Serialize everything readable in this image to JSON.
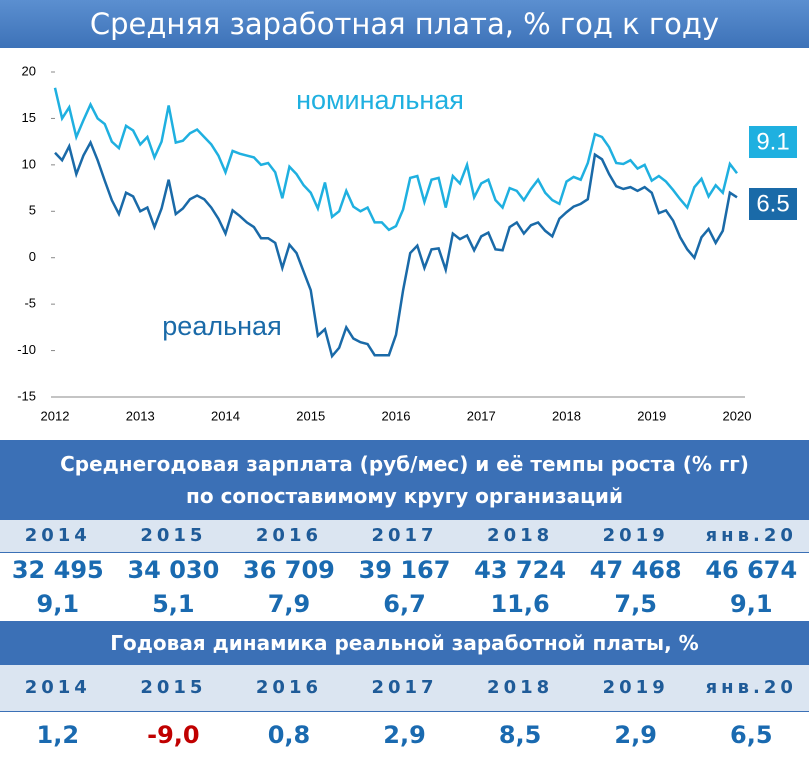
{
  "header": {
    "title": "Средняя заработная плата, % год к году"
  },
  "chart_data": {
    "type": "line",
    "categories": [
      "2012",
      null,
      null,
      null,
      null,
      null,
      null,
      null,
      null,
      null,
      null,
      null,
      "2013",
      null,
      null,
      null,
      null,
      null,
      null,
      null,
      null,
      null,
      null,
      null,
      "2014",
      null,
      null,
      null,
      null,
      null,
      null,
      null,
      null,
      null,
      null,
      null,
      "2015",
      null,
      null,
      null,
      null,
      null,
      null,
      null,
      null,
      null,
      null,
      null,
      "2016",
      null,
      null,
      null,
      null,
      null,
      null,
      null,
      null,
      null,
      null,
      null,
      "2017",
      null,
      null,
      null,
      null,
      null,
      null,
      null,
      null,
      null,
      null,
      null,
      "2018",
      null,
      null,
      null,
      null,
      null,
      null,
      null,
      null,
      null,
      null,
      null,
      "2019",
      null,
      null,
      null,
      null,
      null,
      null,
      null,
      null,
      null,
      null,
      null,
      "2020"
    ],
    "series": [
      {
        "name": "номинальная",
        "color": "#1fb0e0",
        "values": [
          18.3,
          15,
          16.2,
          13,
          14.8,
          16.5,
          15,
          14.4,
          12.5,
          11.8,
          14.2,
          13.7,
          12.2,
          13,
          10.8,
          12.5,
          16.4,
          12.4,
          12.6,
          13.4,
          13.8,
          13,
          12.2,
          11,
          9.2,
          11.5,
          11.2,
          11,
          10.8,
          10,
          10.2,
          9.2,
          6.4,
          9.8,
          9,
          7.8,
          7,
          5.3,
          8.1,
          4.4,
          5,
          7.2,
          5.5,
          5,
          5.4,
          3.8,
          3.8,
          3,
          3.4,
          5.2,
          8.6,
          8.8,
          6,
          8.4,
          8.6,
          5.4,
          8.8,
          8,
          10,
          6.5,
          8,
          8.4,
          6.2,
          5.4,
          7.5,
          7.2,
          6.2,
          7.4,
          8.4,
          7,
          6.2,
          5.8,
          8.2,
          8.7,
          8.4,
          10.2,
          13.3,
          13,
          11.9,
          10.2,
          10.1,
          10.5,
          9.6,
          10,
          8.3,
          8.8,
          8.2,
          7.3,
          6.3,
          5.4,
          7.6,
          8.5,
          6.6,
          7.8,
          7,
          10.1,
          9.1
        ]
      },
      {
        "name": "реальная",
        "color": "#1a6aa8",
        "values": [
          11.3,
          10.5,
          12,
          9,
          11,
          12.4,
          10.5,
          8.3,
          6.2,
          4.7,
          7,
          6.6,
          5,
          5.4,
          3.3,
          5.3,
          8.4,
          4.7,
          5.3,
          6.3,
          6.7,
          6.3,
          5.4,
          4.2,
          2.6,
          5.1,
          4.5,
          3.8,
          3.3,
          2.1,
          2.1,
          1.6,
          -1.1,
          1.4,
          0.5,
          -1.5,
          -3.5,
          -8.4,
          -7.7,
          -10.6,
          -9.7,
          -7.5,
          -8.7,
          -9.1,
          -9.3,
          -10.5,
          -10.5,
          -10.5,
          -8.3,
          -3.5,
          0.5,
          1.3,
          -1.1,
          0.9,
          1,
          -1.3,
          2.6,
          2,
          2.4,
          0.8,
          2.3,
          2.7,
          0.9,
          0.8,
          3.3,
          3.8,
          2.6,
          3.5,
          3.8,
          2.9,
          2.3,
          4.2,
          4.9,
          5.5,
          5.8,
          6.3,
          11.1,
          10.6,
          9,
          7.7,
          7.4,
          7.6,
          7.2,
          7.6,
          7,
          4.8,
          5.1,
          4,
          2.2,
          0.9,
          0,
          2.2,
          3.1,
          1.6,
          2.9,
          7,
          6.5
        ]
      }
    ],
    "ylim": [
      -15,
      20
    ],
    "yticks": [
      -15,
      -10,
      -5,
      0,
      5,
      10,
      15,
      20
    ],
    "grid": false
  },
  "table1": {
    "title": "Среднегодовая зарплата (руб/мес) и её темпы роста (% гг)  по сопоставимому кругу организаций",
    "headers": [
      "2014",
      "2015",
      "2016",
      "2017",
      "2018",
      "2019",
      "янв.20"
    ],
    "rows": [
      [
        "32 495",
        "34 030",
        "36 709",
        "39 167",
        "43 724",
        "47 468",
        "46 674"
      ],
      [
        "9,1",
        "5,1",
        "7,9",
        "6,7",
        "11,6",
        "7,5",
        "9,1"
      ]
    ]
  },
  "table2": {
    "title": "Годовая динамика реальной заработной платы, %",
    "headers": [
      "2014",
      "2015",
      "2016",
      "2017",
      "2018",
      "2019",
      "янв.20"
    ],
    "values": [
      "1,2",
      "-9,0",
      "0,8",
      "2,9",
      "8,5",
      "2,9",
      "6,5"
    ]
  }
}
